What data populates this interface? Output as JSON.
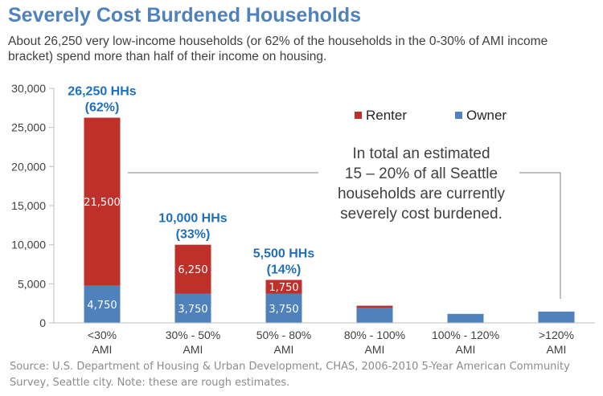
{
  "title": "Severely Cost Burdened Households",
  "subtitle": "About 26,250 very low-income households (or 62% of the households in the 0-30% of AMI income bracket) spend more than half of their income on housing.",
  "source": "Source: U.S. Department of Housing & Urban Development, CHAS, 2006-2010 5-Year American Community Survey, Seattle city.  Note: these are rough estimates.",
  "colors": {
    "renter": "#c0302a",
    "owner": "#4f81bd",
    "title": "#4f81bd",
    "top_label": "#1f6fbf"
  },
  "chart_data": {
    "type": "bar",
    "stacked": true,
    "categories": [
      [
        "<30%",
        "AMI"
      ],
      [
        "30% - 50%",
        "AMI"
      ],
      [
        "50% - 80%",
        "AMI"
      ],
      [
        "80% - 100%",
        "AMI"
      ],
      [
        "100% - 120%",
        "AMI"
      ],
      [
        ">120%",
        "AMI"
      ]
    ],
    "series": [
      {
        "name": "Owner",
        "values": [
          4750,
          3750,
          3750,
          1950,
          1150,
          1450
        ]
      },
      {
        "name": "Renter",
        "values": [
          21500,
          6250,
          1750,
          250,
          0,
          0
        ]
      }
    ],
    "segment_labels": {
      "Owner": [
        "4,750",
        "3,750",
        "3,750",
        "",
        "",
        ""
      ],
      "Renter": [
        "21,500",
        "6,250",
        "1,750",
        "",
        "",
        ""
      ]
    },
    "top_labels": [
      [
        "26,250 HHs",
        "(62%)"
      ],
      [
        "10,000 HHs",
        "(33%)"
      ],
      [
        "5,500 HHs",
        "(14%)"
      ],
      null,
      null,
      null
    ],
    "ylim": [
      0,
      30000
    ],
    "yticks": [
      0,
      5000,
      10000,
      15000,
      20000,
      25000,
      30000
    ],
    "ytick_labels": [
      "0",
      "5,000",
      "10,000",
      "15,000",
      "20,000",
      "25,000",
      "30,000"
    ],
    "xlabel": "",
    "ylabel": "",
    "legend": {
      "position": "top-right",
      "order": [
        "Renter",
        "Owner"
      ]
    },
    "grid": false,
    "annotation": {
      "lines": [
        "In total an estimated",
        "15 – 20% of all Seattle",
        "households are currently",
        "severely cost burdened."
      ]
    }
  }
}
